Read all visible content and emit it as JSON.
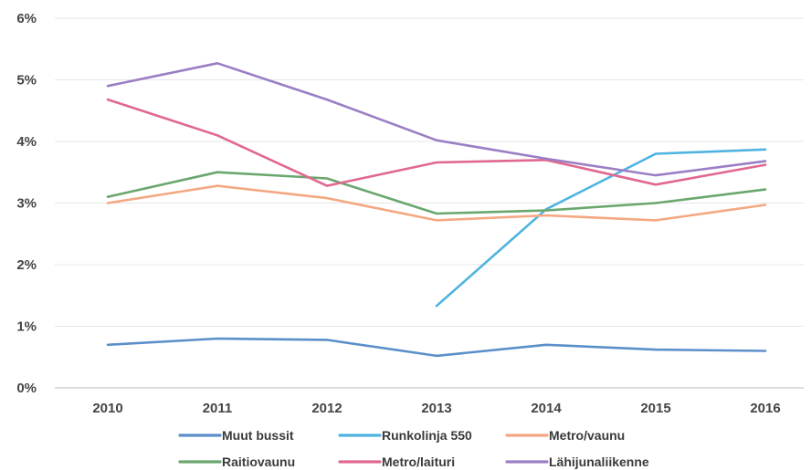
{
  "chart_data": {
    "type": "line",
    "title": "",
    "xlabel": "",
    "ylabel": "",
    "categories": [
      "2010",
      "2011",
      "2012",
      "2013",
      "2014",
      "2015",
      "2016"
    ],
    "ylim": [
      0,
      6
    ],
    "yticks": [
      "0%",
      "1%",
      "2%",
      "3%",
      "4%",
      "5%",
      "6%"
    ],
    "grid": true,
    "legend_position": "bottom",
    "series": [
      {
        "name": "Muut bussit",
        "color": "#5b8fc9",
        "values": [
          0.7,
          0.8,
          0.78,
          0.52,
          0.7,
          0.62,
          0.6
        ]
      },
      {
        "name": "Runkolinja 550",
        "color": "#4fb3e0",
        "values": [
          null,
          null,
          null,
          1.33,
          2.9,
          3.8,
          3.87
        ]
      },
      {
        "name": "Metro/vaunu",
        "color": "#f4a882",
        "values": [
          3.0,
          3.28,
          3.08,
          2.72,
          2.8,
          2.72,
          2.97
        ]
      },
      {
        "name": "Raitiovaunu",
        "color": "#6aa76e",
        "values": [
          3.1,
          3.5,
          3.4,
          2.83,
          2.88,
          3.0,
          3.22
        ]
      },
      {
        "name": "Metro/laituri",
        "color": "#e0688f",
        "values": [
          4.68,
          4.1,
          3.28,
          3.66,
          3.7,
          3.3,
          3.62
        ]
      },
      {
        "name": "Lähijunaliikenne",
        "color": "#9a7fc4",
        "values": [
          4.9,
          5.27,
          4.68,
          4.02,
          3.72,
          3.45,
          3.68
        ]
      }
    ]
  }
}
